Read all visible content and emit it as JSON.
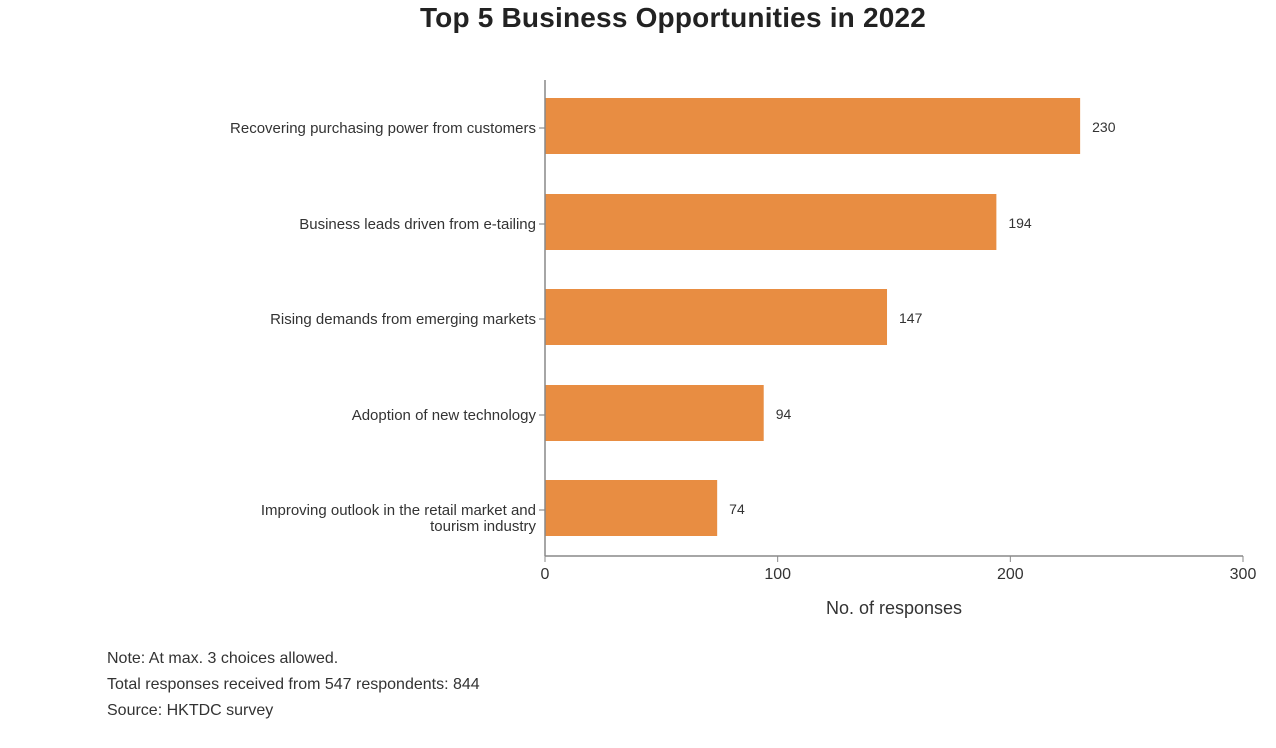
{
  "chart_data": {
    "type": "bar",
    "orientation": "horizontal",
    "title": "Top 5 Business Opportunities in 2022",
    "categories": [
      "Recovering purchasing power from customers",
      "Business leads driven from e-tailing",
      "Rising demands from emerging markets",
      "Adoption of new technology",
      "Improving outlook in the retail market and tourism industry"
    ],
    "category_label_lines": [
      [
        "Recovering purchasing power from customers"
      ],
      [
        "Business leads driven from e-tailing"
      ],
      [
        "Rising demands from emerging markets"
      ],
      [
        "Adoption of new technology"
      ],
      [
        "Improving outlook in the retail market and",
        "tourism industry"
      ]
    ],
    "values": [
      230,
      194,
      147,
      94,
      74
    ],
    "data_labels": [
      "230",
      "194",
      "147",
      "94",
      "74"
    ],
    "xlabel": "No. of responses",
    "ylabel": "",
    "xlim": [
      0,
      300
    ],
    "xticks": [
      0,
      100,
      200,
      300
    ],
    "xtick_labels": [
      "0",
      "100",
      "200",
      "300"
    ],
    "grid": false,
    "legend": null,
    "bar_color": "#e88d42"
  },
  "notes": [
    "Note: At max. 3 choices allowed.",
    "Total responses received from 547 respondents: 844",
    "Source: HKTDC survey"
  ]
}
